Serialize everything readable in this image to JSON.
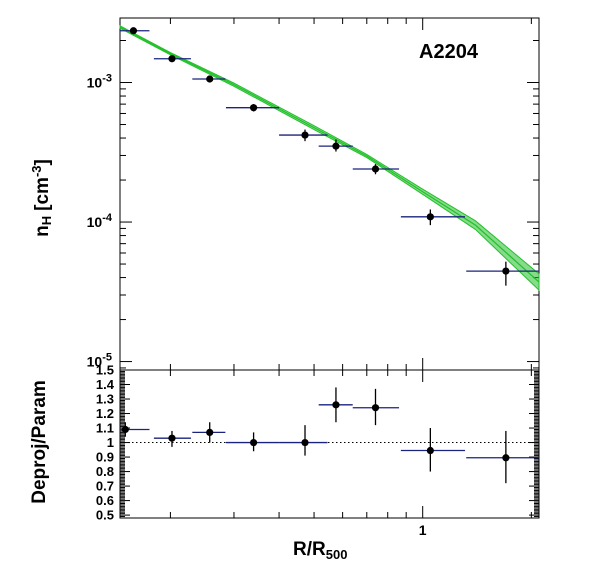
{
  "chart_data": [
    {
      "type": "scatter",
      "annotation": "A2204",
      "ylabel_base": "n",
      "ylabel_sub": "H",
      "ylabel_unit": "[cm",
      "ylabel_sup": "-3",
      "ylabel_close": "]",
      "xscale": "log",
      "yscale": "log",
      "xlim": [
        0.145,
        2.1
      ],
      "ylim": [
        8.7e-06,
        0.0029
      ],
      "yticklabels": [
        {
          "value": 0.001,
          "base": "10",
          "exp": "-3"
        },
        {
          "value": 0.0001,
          "base": "10",
          "exp": "-4"
        },
        {
          "value": 1e-05,
          "base": "10",
          "exp": "-5"
        }
      ],
      "points": [
        {
          "x": 0.158,
          "xlo": 0.145,
          "xhi": 0.175,
          "y": 0.00235,
          "ylo": 0.00228,
          "yhi": 0.00242
        },
        {
          "x": 0.202,
          "xlo": 0.18,
          "xhi": 0.228,
          "y": 0.00148,
          "ylo": 0.00142,
          "yhi": 0.00154
        },
        {
          "x": 0.257,
          "xlo": 0.23,
          "xhi": 0.284,
          "y": 0.00106,
          "ylo": 0.001,
          "yhi": 0.00112
        },
        {
          "x": 0.34,
          "xlo": 0.285,
          "xhi": 0.4,
          "y": 0.00066,
          "ylo": 0.00062,
          "yhi": 0.0007
        },
        {
          "x": 0.472,
          "xlo": 0.4,
          "xhi": 0.545,
          "y": 0.00042,
          "ylo": 0.00038,
          "yhi": 0.00046
        },
        {
          "x": 0.575,
          "xlo": 0.515,
          "xhi": 0.64,
          "y": 0.00035,
          "ylo": 0.00032,
          "yhi": 0.00039
        },
        {
          "x": 0.74,
          "xlo": 0.64,
          "xhi": 0.86,
          "y": 0.00024,
          "ylo": 0.00022,
          "yhi": 0.00026
        },
        {
          "x": 1.05,
          "xlo": 0.87,
          "xhi": 1.31,
          "y": 0.000109,
          "ylo": 9.5e-05,
          "yhi": 0.000123
        },
        {
          "x": 1.7,
          "xlo": 1.32,
          "xhi": 2.1,
          "y": 4.45e-05,
          "ylo": 3.5e-05,
          "yhi": 5.2e-05
        }
      ],
      "model_band": {
        "x": [
          0.145,
          0.2,
          0.3,
          0.5,
          0.7,
          1.0,
          1.4,
          2.1
        ],
        "lo": [
          0.00245,
          0.00158,
          0.00094,
          0.00046,
          0.00029,
          0.000158,
          8.85e-05,
          3.25e-05
        ],
        "hi": [
          0.00255,
          0.00164,
          0.00099,
          0.00049,
          0.000305,
          0.000172,
          0.000102,
          4.25e-05
        ],
        "color": "#22c02a"
      }
    },
    {
      "type": "scatter",
      "ylabel": "Deproj/Param",
      "xlabel_base": "R/R",
      "xlabel_sub": "500",
      "xscale": "log",
      "xlim": [
        0.145,
        2.1
      ],
      "ylim": [
        0.48,
        1.5
      ],
      "xticklabels": [
        {
          "value": 1,
          "label": "1"
        }
      ],
      "yticklabels": [
        "1.5",
        "1.4",
        "1.3",
        "1.2",
        "1.1",
        "1",
        "0.9",
        "0.8",
        "0.7",
        "0.6",
        "0.5"
      ],
      "ytickvalues": [
        1.5,
        1.4,
        1.3,
        1.2,
        1.1,
        1.0,
        0.9,
        0.8,
        0.7,
        0.6,
        0.5
      ],
      "reference_line": 1.0,
      "points": [
        {
          "x": 0.15,
          "xlo": 0.145,
          "xhi": 0.175,
          "y": 1.09,
          "ylo": 1.04,
          "yhi": 1.14
        },
        {
          "x": 0.202,
          "xlo": 0.18,
          "xhi": 0.228,
          "y": 1.03,
          "ylo": 0.97,
          "yhi": 1.08
        },
        {
          "x": 0.257,
          "xlo": 0.23,
          "xhi": 0.284,
          "y": 1.07,
          "ylo": 1.0,
          "yhi": 1.14
        },
        {
          "x": 0.34,
          "xlo": 0.285,
          "xhi": 0.4,
          "y": 1.0,
          "ylo": 0.94,
          "yhi": 1.07
        },
        {
          "x": 0.472,
          "xlo": 0.4,
          "xhi": 0.545,
          "y": 1.0,
          "ylo": 0.91,
          "yhi": 1.12
        },
        {
          "x": 0.575,
          "xlo": 0.515,
          "xhi": 0.64,
          "y": 1.26,
          "ylo": 1.14,
          "yhi": 1.38
        },
        {
          "x": 0.74,
          "xlo": 0.64,
          "xhi": 0.86,
          "y": 1.24,
          "ylo": 1.12,
          "yhi": 1.37
        },
        {
          "x": 1.05,
          "xlo": 0.87,
          "xhi": 1.31,
          "y": 0.945,
          "ylo": 0.8,
          "yhi": 1.1
        },
        {
          "x": 1.7,
          "xlo": 1.32,
          "xhi": 2.1,
          "y": 0.895,
          "ylo": 0.72,
          "yhi": 1.08
        }
      ]
    }
  ]
}
